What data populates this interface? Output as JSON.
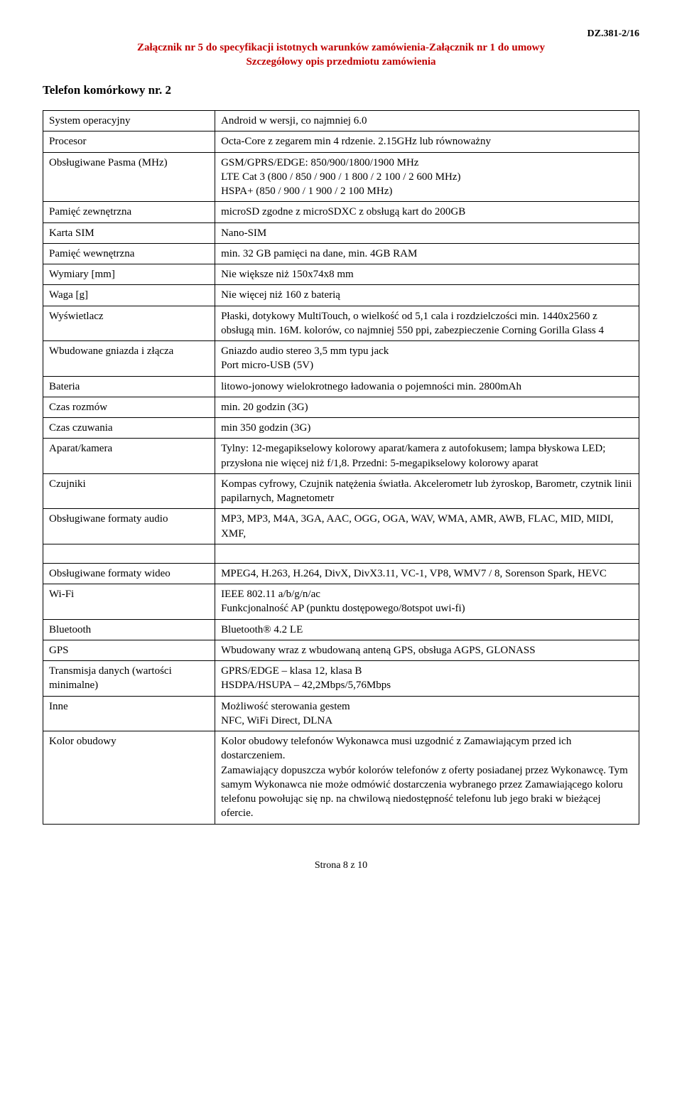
{
  "header": {
    "doc_ref": "DZ.381-2/16",
    "line1": "Załącznik nr 5 do specyfikacji istotnych warunków zamówienia-Załącznik nr 1 do umowy",
    "line2": "Szczegółowy opis przedmiotu zamówienia"
  },
  "title": "Telefon komórkowy nr. 2",
  "rows": [
    {
      "key": "System operacyjny",
      "val": "Android w wersji, co najmniej 6.0"
    },
    {
      "key": "Procesor",
      "val": "Octa-Core z zegarem min 4 rdzenie. 2.15GHz lub równoważny"
    },
    {
      "key": "Obsługiwane Pasma (MHz)",
      "val": "GSM/GPRS/EDGE: 850/900/1800/1900 MHz\nLTE Cat 3 (800 / 850 / 900 / 1 800 / 2 100 / 2 600 MHz)\nHSPA+ (850 / 900 / 1 900 / 2 100 MHz)"
    },
    {
      "key": "Pamięć zewnętrzna",
      "val": "microSD zgodne z microSDXC z obsługą kart do 200GB"
    },
    {
      "key": "Karta SIM",
      "val": "Nano-SIM"
    },
    {
      "key": "Pamięć wewnętrzna",
      "val": "min. 32 GB pamięci na dane, min. 4GB RAM"
    },
    {
      "key": "Wymiary [mm]",
      "val": "Nie większe niż 150x74x8 mm"
    },
    {
      "key": "Waga [g]",
      "val": "Nie więcej niż 160 z baterią"
    },
    {
      "key": "Wyświetlacz",
      "val": "Płaski, dotykowy MultiTouch, o wielkość od 5,1 cala i rozdzielczości min. 1440x2560 z obsługą min. 16M. kolorów, co najmniej 550 ppi, zabezpieczenie Corning Gorilla Glass 4"
    },
    {
      "key": "Wbudowane gniazda i złącza",
      "val": "Gniazdo audio stereo 3,5 mm typu jack\nPort micro-USB (5V)"
    },
    {
      "key": "Bateria",
      "val": "litowo-jonowy wielokrotnego ładowania o pojemności min. 2800mAh"
    },
    {
      "key": "Czas rozmów",
      "val": "min. 20  godzin (3G)"
    },
    {
      "key": "Czas czuwania",
      "val": "min 350 godzin (3G)"
    },
    {
      "key": "Aparat/kamera",
      "val": "Tylny: 12-megapikselowy kolorowy aparat/kamera z autofokusem; lampa błyskowa LED; przysłona nie więcej niż f/1,8. Przedni: 5-megapikselowy kolorowy aparat"
    },
    {
      "key": "Czujniki",
      "val": "Kompas cyfrowy, Czujnik natężenia światła. Akcelerometr lub żyroskop, Barometr, czytnik linii papilarnych, Magnetometr"
    },
    {
      "key": "Obsługiwane formaty audio",
      "val": "MP3, MP3, M4A, 3GA, AAC, OGG, OGA, WAV, WMA, AMR, AWB, FLAC, MID, MIDI, XMF,"
    },
    {
      "key": "Obsługiwane formaty wideo",
      "val": "MPEG4, H.263, H.264, DivX, DivX3.11, VC-1, VP8, WMV7 / 8, Sorenson Spark, HEVC"
    },
    {
      "key": "Wi-Fi",
      "val": "IEEE 802.11 a/b/g/n/ac\nFunkcjonalność AP (punktu dostępowego/8otspot uwi-fi)"
    },
    {
      "key": "Bluetooth",
      "val": "Bluetooth® 4.2 LE"
    },
    {
      "key": "GPS",
      "val": "Wbudowany wraz z wbudowaną anteną GPS, obsługa AGPS, GLONASS"
    },
    {
      "key": "Transmisja danych (wartości minimalne)",
      "val": "GPRS/EDGE – klasa 12, klasa B\nHSDPA/HSUPA – 42,2Mbps/5,76Mbps"
    },
    {
      "key": "Inne",
      "val": "Możliwość sterowania gestem\nNFC, WiFi Direct, DLNA"
    },
    {
      "key": "Kolor obudowy",
      "val": "Kolor obudowy telefonów Wykonawca musi uzgodnić z Zamawiającym przed ich dostarczeniem.\nZamawiający dopuszcza wybór kolorów telefonów z oferty posiadanej przez Wykonawcę. Tym samym Wykonawca nie może odmówić dostarczenia wybranego przez Zamawiającego koloru telefonu powołując się np. na chwilową niedostępność telefonu lub jego braki w bieżącej\nofercie."
    }
  ],
  "page_footer": "Strona 8 z 10"
}
